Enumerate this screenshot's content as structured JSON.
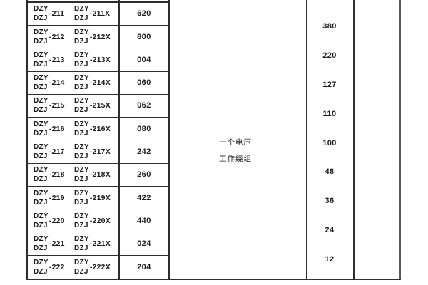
{
  "page": {
    "background": "#ffffff",
    "border_color": "#2d2d2d",
    "text_color": "#1c1c1c"
  },
  "table": {
    "model_prefix_top": "DZY",
    "model_prefix_bottom": "DZJ",
    "rows": [
      {
        "suffix": "-211",
        "suffix_x": "-211X",
        "value": "620"
      },
      {
        "suffix": "-212",
        "suffix_x": "-212X",
        "value": "800"
      },
      {
        "suffix": "-213",
        "suffix_x": "-213X",
        "value": "004"
      },
      {
        "suffix": "-214",
        "suffix_x": "-214X",
        "value": "060"
      },
      {
        "suffix": "-215",
        "suffix_x": "-215X",
        "value": "062"
      },
      {
        "suffix": "-216",
        "suffix_x": "-216X",
        "value": "080"
      },
      {
        "suffix": "-217",
        "suffix_x": "-217X",
        "value": "242"
      },
      {
        "suffix": "-218",
        "suffix_x": "-218X",
        "value": "260"
      },
      {
        "suffix": "-219",
        "suffix_x": "-219X",
        "value": "422"
      },
      {
        "suffix": "-220",
        "suffix_x": "-220X",
        "value": "440"
      },
      {
        "suffix": "-221",
        "suffix_x": "-221X",
        "value": "024"
      },
      {
        "suffix": "-222",
        "suffix_x": "-222X",
        "value": "204"
      }
    ],
    "winding_label": {
      "line1": "一个电压",
      "line2": "工作绕组"
    },
    "voltages": [
      "380",
      "220",
      "127",
      "110",
      "100",
      "48",
      "36",
      "24",
      "12"
    ]
  }
}
